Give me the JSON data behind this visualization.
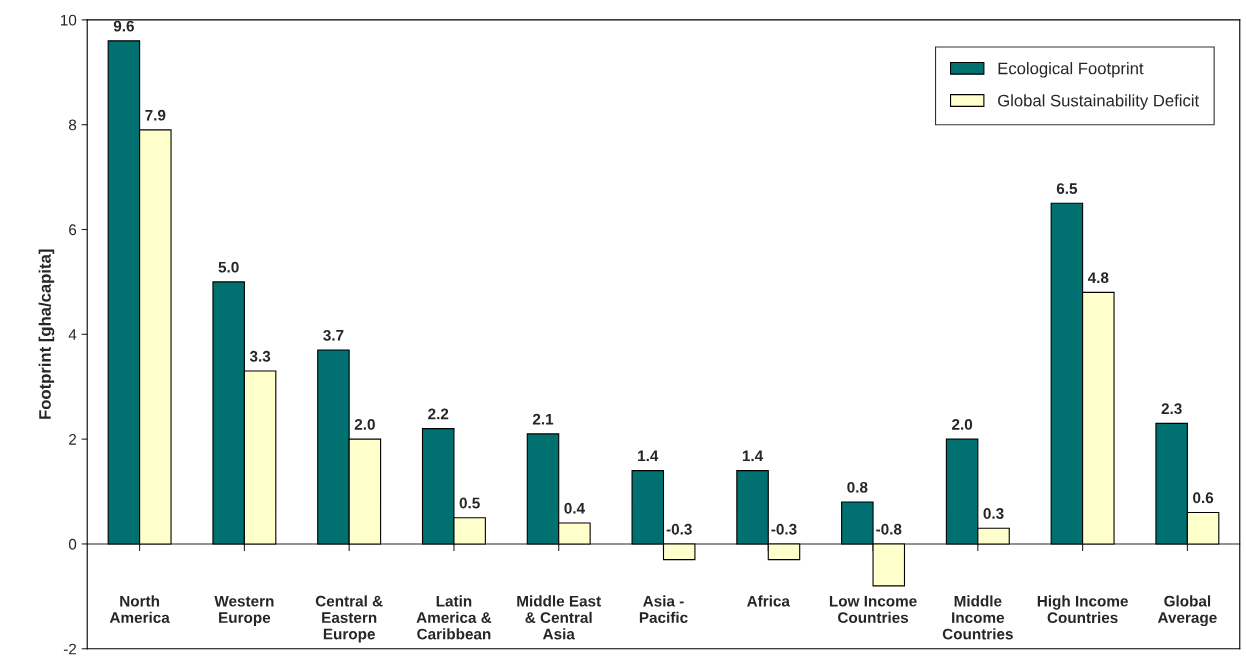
{
  "chart_data": {
    "type": "bar",
    "ylabel": "Footprint [gha/capita]",
    "categories": [
      "North\nAmerica",
      "Western\nEurope",
      "Central &\nEastern\nEurope",
      "Latin\nAmerica &\nCaribbean",
      "Middle East\n& Central\nAsia",
      "Asia -\nPacific",
      "Africa",
      "Low Income\nCountries",
      "Middle\nIncome\nCountries",
      "High Income\nCountries",
      "Global\nAverage"
    ],
    "series": [
      {
        "name": "Ecological Footprint",
        "color": "#007070",
        "values": [
          9.6,
          5.0,
          3.7,
          2.2,
          2.1,
          1.4,
          1.4,
          0.8,
          2.0,
          6.5,
          2.3
        ],
        "value_labels": [
          "9.6",
          "5.0",
          "3.7",
          "2.2",
          "2.1",
          "1.4",
          "1.4",
          "0.8",
          "2.0",
          "6.5",
          "2.3"
        ]
      },
      {
        "name": "Global Sustainability Deficit",
        "color": "#ffffcc",
        "values": [
          7.9,
          3.3,
          2.0,
          0.5,
          0.4,
          -0.3,
          -0.3,
          -0.8,
          0.3,
          4.8,
          0.6
        ],
        "value_labels": [
          "7.9",
          "3.3",
          "2.0",
          "0.5",
          "0.4",
          "-0.3",
          "-0.3",
          "-0.8",
          "0.3",
          "4.8",
          "0.6"
        ]
      }
    ],
    "ylim": [
      -2,
      10
    ],
    "yticks": [
      -2,
      0,
      2,
      4,
      6,
      8,
      10
    ],
    "legend": "top right"
  }
}
